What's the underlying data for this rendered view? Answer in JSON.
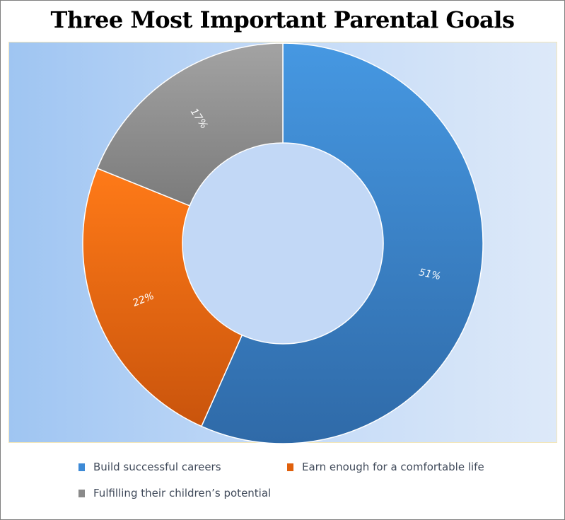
{
  "chart_data": {
    "type": "donut",
    "title": "Three Most Important Parental Goals",
    "series": [
      {
        "name": "Build successful careers",
        "value": 51,
        "label": "51%",
        "color": "#3d8ad6"
      },
      {
        "name": "Earn enough for a comfortable life",
        "value": 22,
        "label": "22%",
        "color": "#ee6a10"
      },
      {
        "name": "Fulfilling their children’s potential",
        "value": 17,
        "label": "17%",
        "color": "#8f8f8f"
      }
    ],
    "legend_position": "bottom"
  }
}
